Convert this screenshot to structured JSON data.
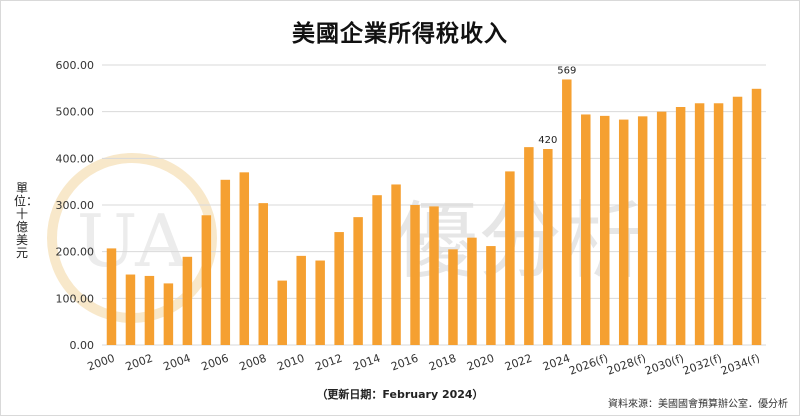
{
  "title": "美國企業所得稅收入",
  "unit_label": "單位：十億美元",
  "updated": "（更新日期：February 2024）",
  "source": "資料來源：美國國會預算辦公室．優分析",
  "watermark": {
    "logo_text": "UA",
    "text": "優分析"
  },
  "colors": {
    "bar": "#f5a031",
    "grid": "#d9d9d9",
    "logo": "#f3d9a6"
  },
  "chart_data": {
    "type": "bar",
    "title": "美國企業所得稅收入",
    "ylabel": "單位：十億美元",
    "xlabel": "",
    "ylim": [
      0,
      600
    ],
    "yticks": [
      "0.00",
      "100.00",
      "200.00",
      "300.00",
      "400.00",
      "500.00",
      "600.00"
    ],
    "grid": true,
    "categories": [
      "2000",
      "2001",
      "2002",
      "2003",
      "2004",
      "2005",
      "2006",
      "2007",
      "2008",
      "2009",
      "2010",
      "2011",
      "2012",
      "2013",
      "2014",
      "2015",
      "2016",
      "2017",
      "2018",
      "2019",
      "2020",
      "2021",
      "2022",
      "2023",
      "2024",
      "2025(f)",
      "2026(f)",
      "2027(f)",
      "2028(f)",
      "2029(f)",
      "2030(f)",
      "2031(f)",
      "2032(f)",
      "2033(f)",
      "2034(f)"
    ],
    "xtick_labels": [
      "2000",
      "2002",
      "2004",
      "2006",
      "2008",
      "2010",
      "2012",
      "2014",
      "2016",
      "2018",
      "2020",
      "2022",
      "2024",
      "2026(f)",
      "2028(f)",
      "2030(f)",
      "2032(f)",
      "2034(f)"
    ],
    "values": [
      207,
      151,
      148,
      132,
      189,
      278,
      354,
      370,
      304,
      138,
      191,
      181,
      242,
      274,
      321,
      344,
      300,
      297,
      205,
      230,
      212,
      372,
      424,
      420,
      569,
      494,
      491,
      483,
      490,
      500,
      510,
      518,
      518,
      532,
      549
    ],
    "data_labels": [
      {
        "category": "2023",
        "text": "420"
      },
      {
        "category": "2024",
        "text": "569"
      }
    ]
  }
}
